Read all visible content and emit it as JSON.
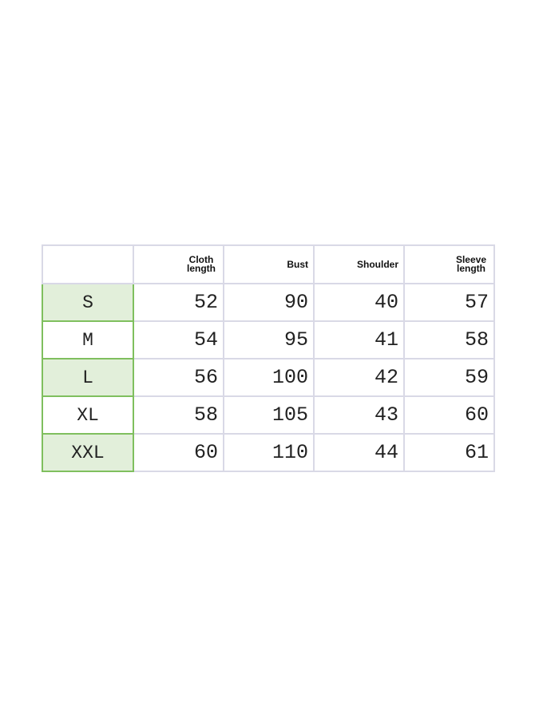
{
  "table": {
    "headers": [
      "",
      "Cloth length",
      "Bust",
      "Shoulder",
      "Sleeve length"
    ],
    "rows": [
      {
        "size": "S",
        "values": [
          "52",
          "90",
          "40",
          "57"
        ]
      },
      {
        "size": "M",
        "values": [
          "54",
          "95",
          "41",
          "58"
        ]
      },
      {
        "size": "L",
        "values": [
          "56",
          "100",
          "42",
          "59"
        ]
      },
      {
        "size": "XL",
        "values": [
          "58",
          "105",
          "43",
          "60"
        ]
      },
      {
        "size": "XXL",
        "values": [
          "60",
          "110",
          "44",
          "61"
        ]
      }
    ]
  },
  "colors": {
    "size_fill": "#e2efda",
    "size_border": "#7fbf5e",
    "grid": "#d9d9e6"
  }
}
